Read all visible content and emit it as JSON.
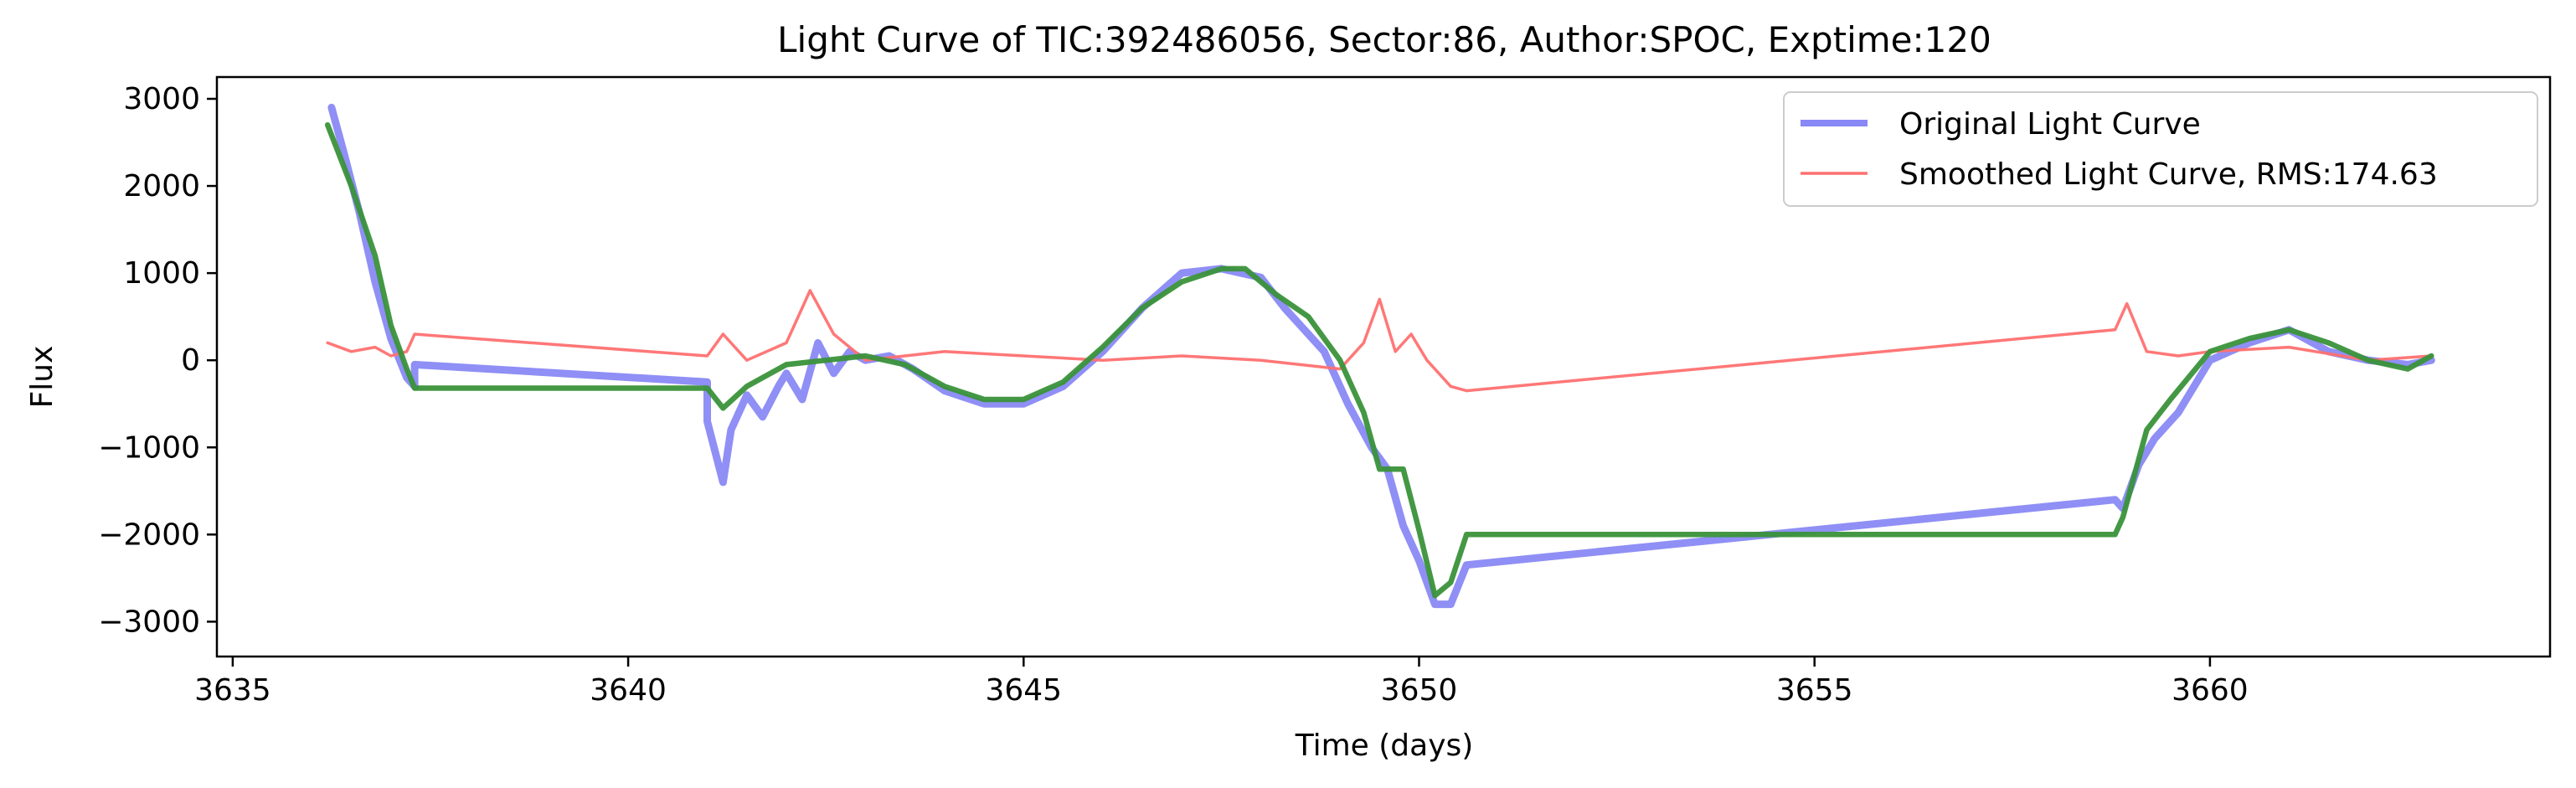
{
  "chart_data": {
    "type": "line",
    "title": "Light Curve of TIC:392486056, Sector:86, Author:SPOC, Exptime:120",
    "xlabel": "Time (days)",
    "ylabel": "Flux",
    "xlim": [
      3634.8,
      3664.3
    ],
    "ylim": [
      -3400,
      3250
    ],
    "xticks": [
      3635,
      3640,
      3645,
      3650,
      3655,
      3660
    ],
    "yticks": [
      -3000,
      -2000,
      -1000,
      0,
      1000,
      2000,
      3000
    ],
    "xtick_labels": [
      "3635",
      "3640",
      "3645",
      "3650",
      "3655",
      "3660"
    ],
    "ytick_labels": [
      "−3000",
      "−2000",
      "−1000",
      "0",
      "1000",
      "2000",
      "3000"
    ],
    "grid": false,
    "legend_position": "top-right",
    "series": [
      {
        "name": "Original Light Curve",
        "color": "#7b7bf5",
        "points": [
          [
            3636.25,
            2900
          ],
          [
            3636.4,
            2400
          ],
          [
            3636.6,
            1700
          ],
          [
            3636.8,
            900
          ],
          [
            3637.0,
            250
          ],
          [
            3637.2,
            -200
          ],
          [
            3637.3,
            -300
          ],
          [
            3637.3,
            -50
          ],
          [
            3641.0,
            -250
          ],
          [
            3641.0,
            -700
          ],
          [
            3641.2,
            -1400
          ],
          [
            3641.3,
            -800
          ],
          [
            3641.5,
            -400
          ],
          [
            3641.7,
            -650
          ],
          [
            3641.9,
            -300
          ],
          [
            3642.0,
            -150
          ],
          [
            3642.2,
            -450
          ],
          [
            3642.4,
            200
          ],
          [
            3642.6,
            -150
          ],
          [
            3642.8,
            100
          ],
          [
            3643.0,
            0
          ],
          [
            3643.3,
            50
          ],
          [
            3643.6,
            -100
          ],
          [
            3644.0,
            -350
          ],
          [
            3644.5,
            -500
          ],
          [
            3645.0,
            -500
          ],
          [
            3645.5,
            -300
          ],
          [
            3646.0,
            100
          ],
          [
            3646.5,
            600
          ],
          [
            3647.0,
            1000
          ],
          [
            3647.5,
            1050
          ],
          [
            3648.0,
            950
          ],
          [
            3648.3,
            600
          ],
          [
            3648.8,
            100
          ],
          [
            3649.1,
            -500
          ],
          [
            3649.4,
            -1000
          ],
          [
            3649.6,
            -1250
          ],
          [
            3649.8,
            -1900
          ],
          [
            3650.0,
            -2300
          ],
          [
            3650.2,
            -2800
          ],
          [
            3650.4,
            -2800
          ],
          [
            3650.6,
            -2350
          ],
          [
            3658.8,
            -1600
          ],
          [
            3658.9,
            -1700
          ],
          [
            3659.1,
            -1200
          ],
          [
            3659.3,
            -900
          ],
          [
            3659.6,
            -600
          ],
          [
            3660.0,
            0
          ],
          [
            3660.5,
            200
          ],
          [
            3661.0,
            350
          ],
          [
            3661.5,
            100
          ],
          [
            3662.0,
            0
          ],
          [
            3662.5,
            -50
          ],
          [
            3662.8,
            0
          ]
        ]
      },
      {
        "name": "Smoothed Light Curve, RMS:174.63",
        "color": "#ff7070",
        "points": [
          [
            3636.2,
            200
          ],
          [
            3636.5,
            100
          ],
          [
            3636.8,
            150
          ],
          [
            3637.0,
            50
          ],
          [
            3637.2,
            100
          ],
          [
            3637.3,
            300
          ],
          [
            3641.0,
            50
          ],
          [
            3641.2,
            300
          ],
          [
            3641.5,
            0
          ],
          [
            3642.0,
            200
          ],
          [
            3642.3,
            800
          ],
          [
            3642.6,
            300
          ],
          [
            3643.0,
            0
          ],
          [
            3644.0,
            100
          ],
          [
            3645.0,
            50
          ],
          [
            3646.0,
            0
          ],
          [
            3647.0,
            50
          ],
          [
            3648.0,
            0
          ],
          [
            3649.0,
            -100
          ],
          [
            3649.3,
            200
          ],
          [
            3649.5,
            700
          ],
          [
            3649.7,
            100
          ],
          [
            3649.9,
            300
          ],
          [
            3650.1,
            0
          ],
          [
            3650.4,
            -300
          ],
          [
            3650.6,
            -350
          ],
          [
            3658.8,
            350
          ],
          [
            3658.95,
            650
          ],
          [
            3659.2,
            100
          ],
          [
            3659.6,
            50
          ],
          [
            3660.0,
            100
          ],
          [
            3661.0,
            150
          ],
          [
            3662.0,
            0
          ],
          [
            3662.8,
            50
          ]
        ]
      },
      {
        "color": "#3a923a",
        "points": [
          [
            3636.2,
            2700
          ],
          [
            3636.5,
            2000
          ],
          [
            3636.8,
            1200
          ],
          [
            3637.0,
            400
          ],
          [
            3637.2,
            -100
          ],
          [
            3637.3,
            -320
          ],
          [
            3641.0,
            -320
          ],
          [
            3641.2,
            -550
          ],
          [
            3641.5,
            -300
          ],
          [
            3642.0,
            -50
          ],
          [
            3642.5,
            0
          ],
          [
            3643.0,
            50
          ],
          [
            3643.5,
            -50
          ],
          [
            3644.0,
            -300
          ],
          [
            3644.5,
            -450
          ],
          [
            3645.0,
            -450
          ],
          [
            3645.5,
            -250
          ],
          [
            3646.0,
            150
          ],
          [
            3646.5,
            600
          ],
          [
            3647.0,
            900
          ],
          [
            3647.5,
            1050
          ],
          [
            3647.8,
            1050
          ],
          [
            3648.2,
            750
          ],
          [
            3648.6,
            500
          ],
          [
            3649.0,
            0
          ],
          [
            3649.3,
            -600
          ],
          [
            3649.5,
            -1250
          ],
          [
            3649.8,
            -1250
          ],
          [
            3650.0,
            -1950
          ],
          [
            3650.2,
            -2700
          ],
          [
            3650.4,
            -2550
          ],
          [
            3650.6,
            -2000
          ],
          [
            3658.8,
            -2000
          ],
          [
            3658.9,
            -1800
          ],
          [
            3659.2,
            -800
          ],
          [
            3659.5,
            -450
          ],
          [
            3660.0,
            100
          ],
          [
            3660.5,
            250
          ],
          [
            3661.0,
            350
          ],
          [
            3661.5,
            200
          ],
          [
            3662.0,
            0
          ],
          [
            3662.5,
            -100
          ],
          [
            3662.8,
            50
          ]
        ]
      }
    ]
  }
}
